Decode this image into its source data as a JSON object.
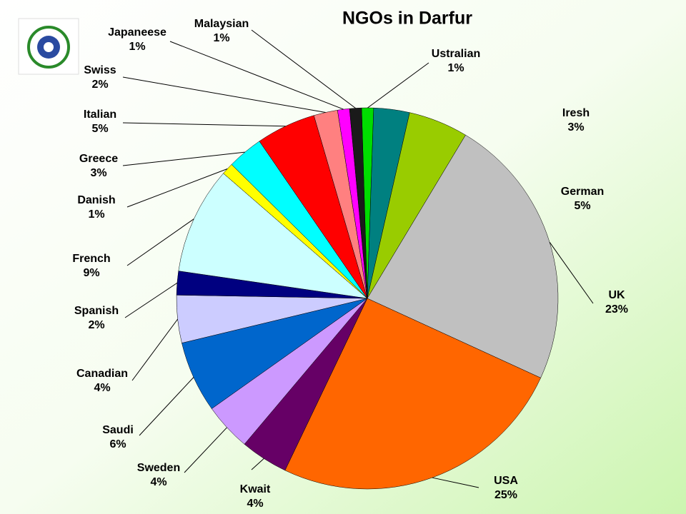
{
  "chart_data": {
    "type": "pie",
    "title": "NGOs in Darfur",
    "categories": [
      "Ustralian",
      "Iresh",
      "German",
      "UK",
      "USA",
      "Kwait",
      "Sweden",
      "Saudi",
      "Canadian",
      "Spanish",
      "French",
      "Danish",
      "Greece",
      "Italian",
      "Swiss",
      "Japaneese",
      "Malaysian"
    ],
    "values": [
      1,
      3,
      5,
      23,
      25,
      4,
      4,
      6,
      4,
      2,
      9,
      1,
      3,
      5,
      2,
      1,
      1
    ],
    "value_labels": [
      "1%",
      "3%",
      "5%",
      "23%",
      "25%",
      "4%",
      "4%",
      "6%",
      "4%",
      "2%",
      "9%",
      "1%",
      "3%",
      "5%",
      "2%",
      "1%",
      "1%"
    ],
    "colors": [
      "#00dd00",
      "#008080",
      "#99cc00",
      "#c0c0c0",
      "#ff6600",
      "#660066",
      "#cc99ff",
      "#0066cc",
      "#ccccff",
      "#000080",
      "#ccffff",
      "#ffff00",
      "#00ffff",
      "#ff0000",
      "#ff8080",
      "#ff00ff",
      "#1a1a1a"
    ]
  }
}
